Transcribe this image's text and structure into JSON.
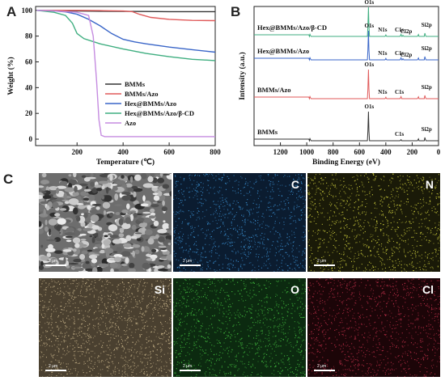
{
  "panels": {
    "a": "A",
    "b": "B",
    "c": "C"
  },
  "chart_data": [
    {
      "type": "line",
      "panel": "A",
      "title": "",
      "xlabel": "Temperature (℃)",
      "ylabel": "Weight (%)",
      "xlim": [
        20,
        800
      ],
      "ylim": [
        -5,
        103
      ],
      "xticks": [
        200,
        400,
        600,
        800
      ],
      "yticks": [
        0,
        20,
        40,
        60,
        80,
        100
      ],
      "legend_position": "lower-left",
      "series": [
        {
          "name": "BMMs",
          "color": "#333333",
          "x": [
            25,
            100,
            200,
            300,
            400,
            500,
            600,
            700,
            800
          ],
          "y": [
            100,
            99.7,
            99.5,
            99.3,
            99.2,
            99.1,
            99.0,
            99.0,
            99.0
          ]
        },
        {
          "name": "BMMs/Azo",
          "color": "#e05a5a",
          "x": [
            25,
            100,
            200,
            300,
            400,
            440,
            470,
            520,
            600,
            700,
            800
          ],
          "y": [
            100,
            100,
            100,
            99.8,
            99.5,
            99.0,
            97.0,
            94.5,
            93.0,
            92.2,
            92.0
          ]
        },
        {
          "name": "Hex@BMMs/Azo",
          "color": "#3a66c8",
          "x": [
            25,
            100,
            150,
            200,
            250,
            300,
            350,
            400,
            450,
            500,
            600,
            700,
            800
          ],
          "y": [
            100,
            99.5,
            98.8,
            97.0,
            93.0,
            88.0,
            82.0,
            77.5,
            75.5,
            74.0,
            71.5,
            69.5,
            67.5
          ]
        },
        {
          "name": "Hex@BMMs/Azo/β-CD",
          "color": "#3fae80",
          "x": [
            25,
            100,
            150,
            180,
            200,
            230,
            300,
            400,
            500,
            600,
            700,
            800
          ],
          "y": [
            100,
            98.5,
            96.0,
            90.0,
            82.0,
            78.0,
            74.0,
            70.0,
            66.5,
            64.0,
            62.0,
            61.0
          ]
        },
        {
          "name": "Azo",
          "color": "#c58ce0",
          "x": [
            25,
            100,
            200,
            250,
            270,
            285,
            295,
            305,
            320,
            400,
            600,
            800
          ],
          "y": [
            100,
            99.5,
            98.5,
            96.0,
            80.0,
            45.0,
            15.0,
            3.0,
            2.0,
            2.0,
            2.0,
            2.0
          ]
        }
      ]
    },
    {
      "type": "line",
      "panel": "B",
      "title": "",
      "xlabel": "Binding Energy (eV)",
      "ylabel": "Intensity (a.u.)",
      "xlim": [
        1400,
        0
      ],
      "xticks": [
        1200,
        1000,
        800,
        600,
        400,
        200,
        0
      ],
      "series": [
        {
          "name": "Hex@BMMs/Azo/β-CD",
          "color": "#3fae80",
          "offset": 3,
          "peaks": [
            {
              "x": 532,
              "h": 1.0,
              "label": "O1s"
            },
            {
              "x": 400,
              "h": 0.05,
              "label": "N1s"
            },
            {
              "x": 285,
              "h": 0.09,
              "label": "C1s"
            },
            {
              "x": 270,
              "h": 0.05,
              "label": "Cl2p"
            },
            {
              "x": 153,
              "h": 0.08,
              "label": ""
            },
            {
              "x": 103,
              "h": 0.14,
              "label": "Si2p"
            },
            {
              "x": 975,
              "h": 0.09,
              "label": ""
            }
          ]
        },
        {
          "name": "Hex@BMMs/Azo",
          "color": "#3a66c8",
          "offset": 2,
          "peaks": [
            {
              "x": 532,
              "h": 1.0,
              "label": "O1s"
            },
            {
              "x": 400,
              "h": 0.05,
              "label": "N1s"
            },
            {
              "x": 285,
              "h": 0.09,
              "label": "C1s"
            },
            {
              "x": 270,
              "h": 0.05,
              "label": "Cl2p"
            },
            {
              "x": 153,
              "h": 0.08,
              "label": ""
            },
            {
              "x": 103,
              "h": 0.14,
              "label": "Si2p"
            },
            {
              "x": 975,
              "h": 0.09,
              "label": ""
            }
          ]
        },
        {
          "name": "BMMs/Azo",
          "color": "#e05a5a",
          "offset": 1,
          "peaks": [
            {
              "x": 532,
              "h": 1.0,
              "label": "O1s"
            },
            {
              "x": 400,
              "h": 0.05,
              "label": "N1s"
            },
            {
              "x": 285,
              "h": 0.09,
              "label": "C1s"
            },
            {
              "x": 153,
              "h": 0.08,
              "label": ""
            },
            {
              "x": 103,
              "h": 0.14,
              "label": "Si2p"
            },
            {
              "x": 975,
              "h": 0.09,
              "label": ""
            }
          ]
        },
        {
          "name": "BMMs",
          "color": "#333333",
          "offset": 0,
          "peaks": [
            {
              "x": 532,
              "h": 1.0,
              "label": "O1s"
            },
            {
              "x": 285,
              "h": 0.05,
              "label": "C1s"
            },
            {
              "x": 153,
              "h": 0.08,
              "label": ""
            },
            {
              "x": 103,
              "h": 0.14,
              "label": "Si2p"
            },
            {
              "x": 975,
              "h": 0.09,
              "label": ""
            }
          ]
        }
      ]
    }
  ],
  "eds_maps": [
    {
      "element": "",
      "kind": "sem",
      "scale": "2 μm"
    },
    {
      "element": "C",
      "kind": "map",
      "color": "#3a8fd0",
      "bg": "#0b1c30",
      "scale": "2 μm"
    },
    {
      "element": "N",
      "kind": "map",
      "color": "#d8d840",
      "bg": "#1a1a08",
      "scale": "2 μm"
    },
    {
      "element": "Si",
      "kind": "map",
      "color": "#c8b48a",
      "bg": "#4a4030",
      "scale": "2 μm"
    },
    {
      "element": "O",
      "kind": "map",
      "color": "#44c040",
      "bg": "#0c2a10",
      "scale": "2 μm"
    },
    {
      "element": "Cl",
      "kind": "map",
      "color": "#c0304a",
      "bg": "#1c0508",
      "scale": "2 μm"
    }
  ]
}
